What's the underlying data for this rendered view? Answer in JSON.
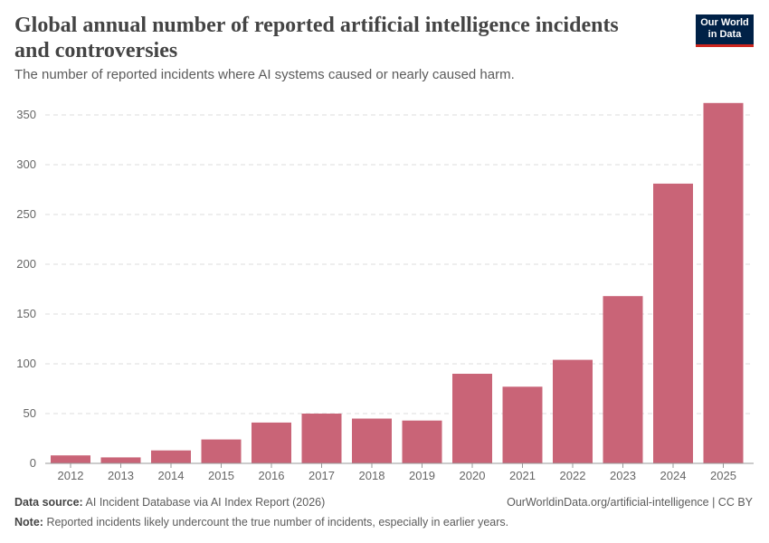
{
  "header": {
    "title": "Global annual number of reported artificial intelligence incidents and controversies",
    "subtitle": "The number of reported incidents where AI systems caused or nearly caused harm.",
    "logo_line1": "Our World",
    "logo_line2": "in Data"
  },
  "footer": {
    "source_label": "Data source:",
    "source": "AI Incident Database via AI Index Report (2026)",
    "url": "OurWorldinData.org/artificial-intelligence | CC BY",
    "note_label": "Note:",
    "note": "Reported incidents likely undercount the true number of incidents, especially in earlier years."
  },
  "chart_data": {
    "type": "bar",
    "categories": [
      "2012",
      "2013",
      "2014",
      "2015",
      "2016",
      "2017",
      "2018",
      "2019",
      "2020",
      "2021",
      "2022",
      "2023",
      "2024",
      "2025"
    ],
    "values": [
      8,
      6,
      13,
      24,
      41,
      50,
      45,
      43,
      90,
      77,
      104,
      168,
      281,
      362
    ],
    "ylim": [
      0,
      362
    ],
    "yticks": [
      0,
      50,
      100,
      150,
      200,
      250,
      300,
      350
    ],
    "grid": true,
    "bar_color": "#c96477"
  }
}
